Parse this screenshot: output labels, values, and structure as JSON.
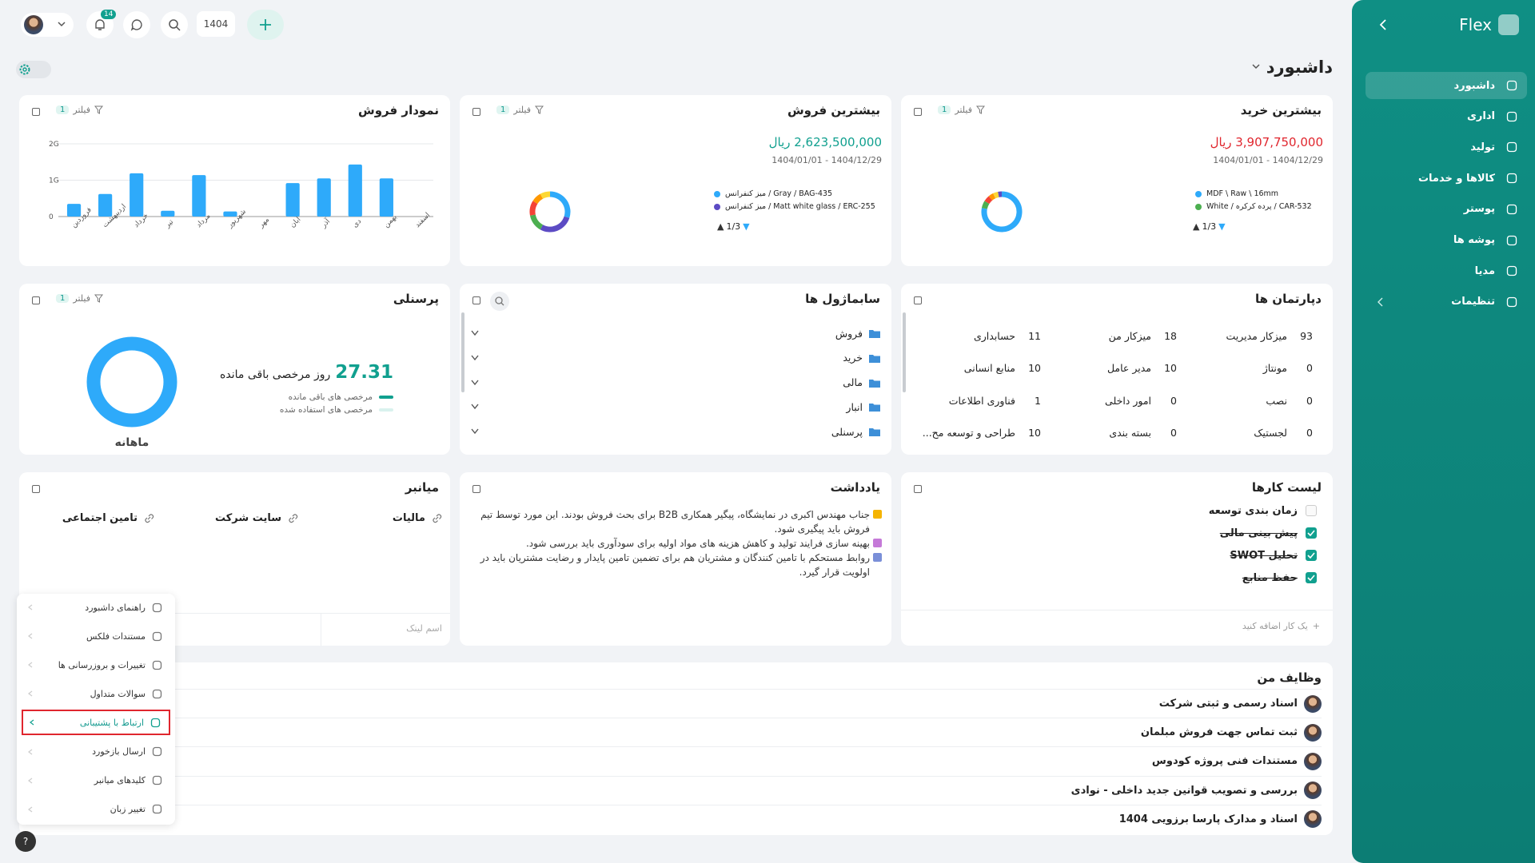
{
  "topbar": {
    "notification_count": "14",
    "year": "1404"
  },
  "sidebar": {
    "brand": "Flex",
    "menu": [
      "داشبورد",
      "اداری",
      "تولید",
      "کالاها و خدمات",
      "پوستر",
      "پوشه ها",
      "مدیا",
      "تنظیمات"
    ]
  },
  "page_title": "داشبورد",
  "top_purchase": {
    "title": "بیشترین خرید",
    "filter": "فیلتر",
    "filter_count": "1",
    "amount": "3,907,750,000 ریال",
    "date_range": "1404/12/29 - 1404/01/01",
    "legend": [
      "MDF \\ Raw \\ 16mm",
      "White / پرده کرکره / CAR-532"
    ],
    "page": "1/3",
    "chart": {
      "type": "pie",
      "values": [
        78,
        6,
        5,
        4,
        4,
        3
      ],
      "colors": [
        "#2eaafa",
        "#4caf50",
        "#f44336",
        "#ff9800",
        "#fdd835",
        "#5c4bc4"
      ]
    }
  },
  "top_sales": {
    "title": "بیشترین فروش",
    "filter": "فیلتر",
    "filter_count": "1",
    "amount": "2,623,500,000 ریال",
    "date_range": "1404/12/29 - 1404/01/01",
    "legend": [
      "میز کنفرانس / Gray / BAG-435",
      "میز کنفرانس / Matt white glass / ERC-255"
    ],
    "page": "1/3",
    "chart": {
      "type": "pie",
      "values": [
        30,
        28,
        14,
        12,
        8,
        8
      ],
      "colors": [
        "#2eaafa",
        "#5c4bc4",
        "#4caf50",
        "#f44336",
        "#ff9800",
        "#fdd835"
      ]
    }
  },
  "sales_chart": {
    "title": "نمودار فروش",
    "filter": "فیلتر",
    "filter_count": "1",
    "chart": {
      "type": "bar",
      "color": "#2eaafa",
      "grid": true,
      "categories": [
        "فروردین",
        "اردیبهشت",
        "خرداد",
        "تیر",
        "مرداد",
        "شهریور",
        "مهر",
        "آبان",
        "آذر",
        "دی",
        "بهمن",
        "اسفند"
      ],
      "values": [
        350000000,
        620000000,
        1190000000,
        160000000,
        1140000000,
        140000000,
        0,
        920000000,
        1050000000,
        1430000000,
        1050000000,
        0
      ],
      "ylim": [
        0,
        2000000000
      ],
      "yticks": [
        0,
        {
          "value": 1000000000,
          "label": "1G"
        },
        {
          "value": 2000000000,
          "label": "2G"
        }
      ]
    }
  },
  "departments": {
    "title": "دپارتمان ها",
    "items": [
      {
        "count": "93",
        "name": "میزکار مدیریت"
      },
      {
        "count": "18",
        "name": "میزکار من"
      },
      {
        "count": "11",
        "name": "حسابداری"
      },
      {
        "count": "0",
        "name": "مونتاژ"
      },
      {
        "count": "10",
        "name": "مدیر عامل"
      },
      {
        "count": "10",
        "name": "منابع انسانی"
      },
      {
        "count": "0",
        "name": "نصب"
      },
      {
        "count": "0",
        "name": "امور داخلی"
      },
      {
        "count": "1",
        "name": "فناوری اطلاعات"
      },
      {
        "count": "0",
        "name": "لجستیک"
      },
      {
        "count": "0",
        "name": "بسته بندی"
      },
      {
        "count": "10",
        "name": "طراحی و توسعه مح..."
      }
    ]
  },
  "submodules": {
    "title": "سابماژول ها",
    "items": [
      "فروش",
      "خرید",
      "مالی",
      "انبار",
      "پرسنلی"
    ]
  },
  "personnel": {
    "title": "پرسنلی",
    "filter": "فیلتر",
    "filter_count": "1",
    "days": "27.31",
    "days_label": "روز مرخصی باقی مانده",
    "legend": [
      "مرخصی های باقی مانده",
      "مرخصی های استفاده شده"
    ],
    "period": "ماهانه"
  },
  "todo": {
    "title": "لیست کارها",
    "items": [
      {
        "text": "زمان بندی توسعه",
        "done": false
      },
      {
        "text": "پیش بینی مالی",
        "done": true
      },
      {
        "text": "تحلیل SWOT",
        "done": true
      },
      {
        "text": "حفظ منابع",
        "done": true
      }
    ],
    "add": "یک کار اضافه کنید"
  },
  "notes": {
    "title": "یادداشت",
    "items": [
      "جناب مهندس اکبری در نمایشگاه، پیگیر همکاری B2B برای بحث فروش بودند. این مورد توسط تیم فروش باید پیگیری شود.",
      "بهینه سازی فرایند تولید و کاهش هزینه های مواد اولیه برای سودآوری باید بررسی شود.",
      "روابط مستحکم با تامین کنندگان و مشتریان هم برای تضمین  تامین پایدار و رضایت مشتریان باید در اولویت قرار گیرد."
    ]
  },
  "shortcuts": {
    "title": "میانبر",
    "links": [
      "مالیات",
      "سایت شرکت",
      "تامین اجتماعی"
    ],
    "placeholder": "اسم لینک"
  },
  "my_tasks": {
    "title": "وظایف من",
    "items": [
      "اسناد رسمی و ثبتی شرکت",
      "ثبت تماس جهت فروش مبلمان",
      "مستندات فنی پروژه کودوس",
      "بررسی و تصویب قوانین جدید داخلی - نوادی",
      "اسناد و مدارک پارسا برزویی 1404"
    ]
  },
  "help_menu": {
    "items": [
      "راهنمای داشبورد",
      "مستندات فلکس",
      "تغییرات و بروزرسانی ها",
      "سوالات متداول",
      "ارتباط با پشتیبانی",
      "ارسال بازخورد",
      "کلیدهای میانبر",
      "تغییر زبان"
    ],
    "active": 4
  },
  "help_button": "?"
}
